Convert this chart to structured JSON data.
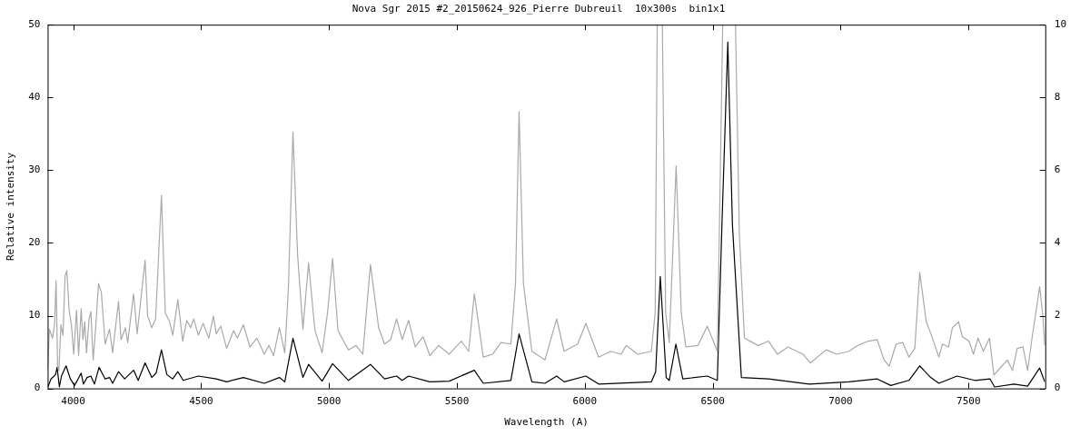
{
  "chart_data": {
    "type": "line",
    "title": "Nova Sgr 2015 #2_20150624_926_Pierre Dubreuil  10x300s  bin1x1",
    "xlabel": "Wavelength (A)",
    "ylabel": "Relative intensity",
    "xlim": [
      3900,
      7800
    ],
    "xticks": [
      4000,
      4500,
      5000,
      5500,
      6000,
      6500,
      7000,
      7500
    ],
    "ylim": [
      0,
      50
    ],
    "yticks": [
      0,
      10,
      20,
      30,
      40,
      50
    ],
    "y2lim": [
      0,
      10
    ],
    "y2ticks": [
      0,
      2,
      4,
      6,
      8,
      10
    ],
    "grid": false,
    "legend": false,
    "marker": "none",
    "line_style": "solid",
    "series": [
      {
        "color": "#a9a9a9",
        "axis": "y2",
        "x": [
          3900,
          3907,
          3919,
          3927,
          3933,
          3939,
          3944,
          3952,
          3960,
          3968,
          3975,
          3984,
          3993,
          4002,
          4013,
          4021,
          4031,
          4038,
          4045,
          4052,
          4062,
          4069,
          4078,
          4087,
          4099,
          4110,
          4125,
          4142,
          4154,
          4177,
          4187,
          4204,
          4213,
          4236,
          4250,
          4281,
          4291,
          4307,
          4322,
          4345,
          4360,
          4377,
          4389,
          4409,
          4428,
          4444,
          4459,
          4471,
          4489,
          4508,
          4530,
          4548,
          4559,
          4577,
          4600,
          4627,
          4642,
          4665,
          4691,
          4718,
          4747,
          4765,
          4783,
          4806,
          4827,
          4841,
          4859,
          4877,
          4898,
          4920,
          4945,
          4973,
          4994,
          5014,
          5035,
          5076,
          5106,
          5132,
          5162,
          5194,
          5217,
          5241,
          5264,
          5286,
          5311,
          5337,
          5368,
          5394,
          5429,
          5470,
          5517,
          5546,
          5568,
          5603,
          5640,
          5672,
          5711,
          5729,
          5743,
          5760,
          5793,
          5844,
          5890,
          5919,
          5972,
          6004,
          6054,
          6101,
          6142,
          6162,
          6207,
          6260,
          6275,
          6283,
          6293,
          6303,
          6316,
          6330,
          6357,
          6377,
          6395,
          6442,
          6479,
          6518,
          6526,
          6539,
          6564,
          6589,
          6604,
          6624,
          6677,
          6718,
          6753,
          6794,
          6853,
          6882,
          6944,
          6985,
          7032,
          7067,
          7108,
          7143,
          7170,
          7190,
          7217,
          7243,
          7267,
          7290,
          7309,
          7335,
          7355,
          7384,
          7398,
          7422,
          7437,
          7461,
          7476,
          7502,
          7519,
          7537,
          7558,
          7582,
          7599,
          7625,
          7652,
          7672,
          7690,
          7713,
          7731,
          7749,
          7763,
          7778,
          7790,
          7798
        ],
        "values": [
          0.53,
          1.63,
          1.38,
          1.75,
          2.96,
          0.61,
          0.49,
          1.75,
          1.46,
          3.08,
          3.24,
          2.15,
          1.75,
          0.94,
          2.15,
          0.9,
          2.19,
          1.34,
          1.83,
          0.98,
          1.91,
          2.11,
          0.78,
          1.59,
          2.88,
          2.64,
          1.22,
          1.63,
          0.98,
          2.39,
          1.34,
          1.67,
          1.26,
          2.6,
          1.5,
          3.53,
          1.99,
          1.67,
          1.91,
          5.31,
          2.07,
          1.83,
          1.46,
          2.44,
          1.3,
          1.87,
          1.67,
          1.91,
          1.46,
          1.79,
          1.38,
          1.99,
          1.5,
          1.71,
          1.1,
          1.59,
          1.38,
          1.75,
          1.14,
          1.38,
          0.94,
          1.18,
          0.9,
          1.67,
          0.98,
          2.72,
          7.05,
          3.69,
          1.63,
          3.45,
          1.59,
          0.98,
          2.07,
          3.57,
          1.59,
          1.06,
          1.18,
          0.94,
          3.41,
          1.67,
          1.22,
          1.34,
          1.91,
          1.34,
          1.87,
          1.14,
          1.42,
          0.9,
          1.18,
          0.94,
          1.3,
          1.02,
          2.6,
          0.86,
          0.94,
          1.26,
          1.22,
          2.88,
          7.61,
          2.88,
          1.02,
          0.78,
          1.91,
          1.02,
          1.22,
          1.79,
          0.86,
          1.02,
          0.94,
          1.18,
          0.94,
          1.02,
          2.07,
          10,
          null,
          10,
          2.07,
          1.26,
          6.12,
          2.07,
          1.14,
          1.18,
          1.71,
          1.02,
          4.34,
          10,
          null,
          10,
          4.26,
          1.38,
          1.18,
          1.3,
          0.94,
          1.14,
          0.94,
          0.7,
          1.06,
          0.94,
          1.02,
          1.18,
          1.3,
          1.34,
          0.78,
          0.61,
          1.22,
          1.26,
          0.86,
          1.1,
          3.19,
          1.83,
          1.46,
          0.86,
          1.22,
          1.14,
          1.67,
          1.83,
          1.42,
          1.3,
          0.94,
          1.38,
          1.02,
          1.38,
          0.37,
          0.57,
          0.78,
          0.49,
          1.1,
          1.14,
          0.49,
          1.42,
          2.07,
          2.8,
          2.03,
          1.18
        ]
      },
      {
        "color": "#000000",
        "x": [
          3901,
          3913,
          3931,
          3937,
          3946,
          3954,
          3972,
          3989,
          4005,
          4019,
          4031,
          4040,
          4054,
          4069,
          4083,
          4101,
          4125,
          4142,
          4154,
          4177,
          4201,
          4236,
          4254,
          4281,
          4307,
          4324,
          4345,
          4366,
          4389,
          4409,
          4430,
          4489,
          4559,
          4600,
          4665,
          4747,
          4806,
          4827,
          4859,
          4898,
          4920,
          4973,
          5014,
          5076,
          5162,
          5217,
          5264,
          5286,
          5311,
          5394,
          5470,
          5568,
          5603,
          5711,
          5743,
          5793,
          5844,
          5890,
          5919,
          6004,
          6054,
          6260,
          6277,
          6295,
          6318,
          6330,
          6356,
          6383,
          6479,
          6518,
          6536,
          6559,
          6577,
          6612,
          6718,
          6877,
          7032,
          7143,
          7196,
          7267,
          7309,
          7352,
          7384,
          7455,
          7525,
          7584,
          7602,
          7678,
          7731,
          7778,
          7798
        ],
        "values": [
          0.2,
          1.3,
          1.9,
          2.9,
          0.2,
          1.7,
          3.1,
          1.3,
          0.4,
          1.3,
          2.1,
          0.6,
          1.5,
          1.7,
          0.6,
          2.9,
          1.3,
          1.5,
          0.7,
          2.3,
          1.3,
          2.5,
          1.1,
          3.5,
          1.5,
          2.1,
          5.3,
          1.9,
          1.3,
          2.3,
          1.1,
          1.7,
          1.3,
          0.9,
          1.5,
          0.7,
          1.5,
          0.9,
          6.9,
          1.5,
          3.3,
          1.0,
          3.4,
          1.1,
          3.3,
          1.3,
          1.7,
          1.1,
          1.7,
          0.9,
          1.0,
          2.5,
          0.7,
          1.1,
          7.5,
          0.9,
          0.7,
          1.7,
          0.9,
          1.7,
          0.6,
          0.9,
          2.3,
          15.4,
          1.5,
          1.1,
          6.1,
          1.3,
          1.7,
          1.1,
          22.5,
          47.6,
          22.5,
          1.5,
          1.3,
          0.6,
          0.9,
          1.3,
          0.4,
          1.1,
          3.1,
          1.5,
          0.7,
          1.7,
          1.1,
          1.3,
          0.2,
          0.6,
          0.3,
          2.8,
          0.9
        ]
      }
    ]
  }
}
